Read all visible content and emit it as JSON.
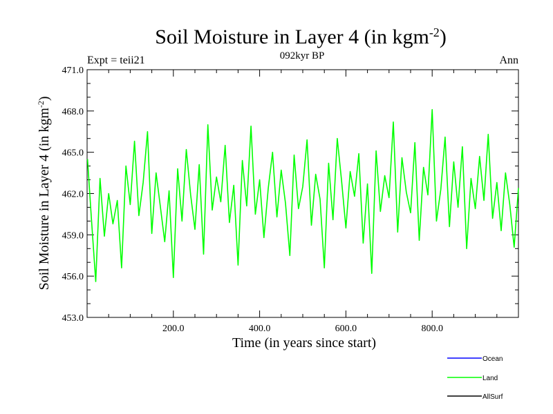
{
  "chart_data": {
    "type": "line",
    "title_main": "Soil Moisture in Layer 4 (in kgm",
    "title_sup": "-2",
    "title_close": ")",
    "subtitle": "092kyr BP",
    "left_label": "Expt = teii21",
    "right_label": "Ann",
    "xlabel": "Time (in years since start)",
    "ylabel_main": "Soil Moisture in Layer 4 (in kgm",
    "ylabel_sup": "-2",
    "ylabel_close": ")",
    "xlim": [
      0,
      1000
    ],
    "ylim": [
      453.0,
      471.0
    ],
    "x_ticks": [
      {
        "value": 200,
        "label": "200.0"
      },
      {
        "value": 400,
        "label": "400.0"
      },
      {
        "value": 600,
        "label": "600.0"
      },
      {
        "value": 800,
        "label": "800.0"
      }
    ],
    "y_ticks": [
      {
        "value": 453,
        "label": "453.0"
      },
      {
        "value": 456,
        "label": "456.0"
      },
      {
        "value": 459,
        "label": "459.0"
      },
      {
        "value": 462,
        "label": "462.0"
      },
      {
        "value": 465,
        "label": "465.0"
      },
      {
        "value": 468,
        "label": "468.0"
      },
      {
        "value": 471,
        "label": "471.0"
      }
    ],
    "series": [
      {
        "name": "Ocean",
        "color": "#0000ff",
        "values": []
      },
      {
        "name": "Land",
        "color": "#00ff00",
        "x": [
          1,
          10,
          20,
          30,
          40,
          50,
          60,
          70,
          80,
          90,
          100,
          110,
          120,
          130,
          140,
          150,
          160,
          170,
          180,
          190,
          200,
          210,
          220,
          230,
          240,
          250,
          260,
          270,
          280,
          290,
          300,
          310,
          320,
          330,
          340,
          350,
          360,
          370,
          380,
          390,
          400,
          410,
          420,
          430,
          440,
          450,
          460,
          470,
          480,
          490,
          500,
          510,
          520,
          530,
          540,
          550,
          560,
          570,
          580,
          590,
          600,
          610,
          620,
          630,
          640,
          650,
          660,
          670,
          680,
          690,
          700,
          710,
          720,
          730,
          740,
          750,
          760,
          770,
          780,
          790,
          800,
          810,
          820,
          830,
          840,
          850,
          860,
          870,
          880,
          890,
          900,
          910,
          920,
          930,
          940,
          950,
          960,
          970,
          980,
          990,
          1000
        ],
        "y": [
          464.5,
          460.2,
          455.6,
          463.1,
          458.9,
          462.0,
          459.8,
          461.5,
          456.6,
          464.0,
          461.2,
          465.8,
          460.4,
          462.8,
          466.5,
          459.1,
          463.5,
          461.0,
          458.5,
          462.2,
          455.9,
          463.8,
          460.0,
          465.2,
          461.9,
          459.4,
          464.1,
          457.6,
          467.0,
          460.8,
          463.2,
          461.4,
          465.5,
          459.9,
          462.6,
          456.8,
          464.4,
          461.1,
          466.9,
          460.5,
          463.0,
          458.8,
          462.4,
          465.0,
          460.3,
          463.7,
          461.3,
          457.5,
          464.8,
          460.9,
          462.5,
          465.9,
          459.7,
          463.4,
          461.6,
          456.6,
          464.2,
          460.1,
          466.0,
          462.9,
          459.5,
          463.6,
          461.8,
          464.9,
          458.4,
          462.7,
          456.2,
          465.1,
          460.7,
          463.3,
          461.7,
          467.2,
          459.2,
          464.6,
          462.1,
          460.6,
          465.7,
          458.6,
          463.9,
          461.9,
          468.1,
          460.0,
          462.3,
          466.1,
          459.6,
          464.3,
          461.0,
          465.4,
          458.0,
          463.1,
          460.9,
          464.7,
          461.5,
          466.3,
          460.2,
          462.8,
          459.3,
          463.5,
          461.2,
          458.1,
          462.4
        ]
      },
      {
        "name": "AllSurf",
        "color": "#000000",
        "values": []
      }
    ]
  }
}
